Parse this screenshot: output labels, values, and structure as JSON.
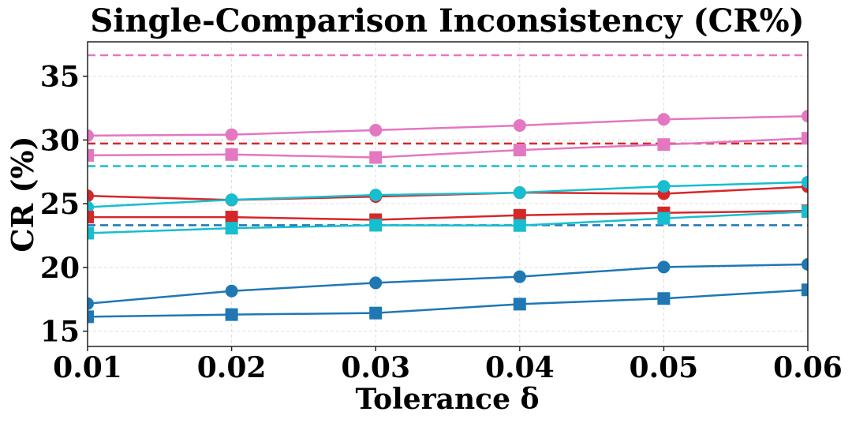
{
  "chart_data": {
    "type": "line",
    "title": "Single-Comparison Inconsistency (CR%)",
    "xlabel": "Tolerance δ",
    "ylabel": "CR (%)",
    "x": [
      0.01,
      0.02,
      0.03,
      0.04,
      0.05,
      0.06
    ],
    "x_tick_labels": [
      "0.01",
      "0.02",
      "0.03",
      "0.04",
      "0.05",
      "0.06"
    ],
    "y_ticks": [
      15,
      20,
      25,
      30,
      35
    ],
    "y_tick_labels": [
      "15",
      "20",
      "25",
      "30",
      "35"
    ],
    "xlim": [
      0.01,
      0.06
    ],
    "ylim": [
      13.8,
      37.7
    ],
    "grid": true,
    "legend": "none",
    "series": [
      {
        "color": "#e377c2",
        "marker": "circle",
        "values": [
          30.34,
          30.42,
          30.77,
          31.14,
          31.62,
          31.87
        ]
      },
      {
        "color": "#e377c2",
        "marker": "square",
        "values": [
          28.79,
          28.86,
          28.63,
          29.21,
          29.64,
          30.13
        ]
      },
      {
        "color": "#d62728",
        "marker": "circle",
        "values": [
          25.62,
          25.29,
          25.56,
          25.87,
          25.78,
          26.34
        ]
      },
      {
        "color": "#17becf",
        "marker": "circle",
        "values": [
          24.73,
          25.31,
          25.68,
          25.87,
          26.36,
          26.69
        ]
      },
      {
        "color": "#d62728",
        "marker": "square",
        "values": [
          23.95,
          23.95,
          23.74,
          24.09,
          24.28,
          24.44
        ]
      },
      {
        "color": "#17becf",
        "marker": "square",
        "values": [
          22.69,
          23.08,
          23.31,
          23.29,
          23.85,
          24.38
        ]
      },
      {
        "color": "#1f77b4",
        "marker": "circle",
        "values": [
          17.16,
          18.15,
          18.79,
          19.27,
          20.03,
          20.24
        ]
      },
      {
        "color": "#1f77b4",
        "marker": "square",
        "values": [
          16.13,
          16.3,
          16.42,
          17.12,
          17.56,
          18.24
        ]
      }
    ],
    "reference_lines": [
      {
        "color": "#e377c2",
        "style": "dashed",
        "value": 36.65
      },
      {
        "color": "#d62728",
        "style": "dashed",
        "value": 29.72
      },
      {
        "color": "#17becf",
        "style": "dashed",
        "value": 27.95
      },
      {
        "color": "#1f77b4",
        "style": "dashed",
        "value": 23.31
      }
    ]
  }
}
